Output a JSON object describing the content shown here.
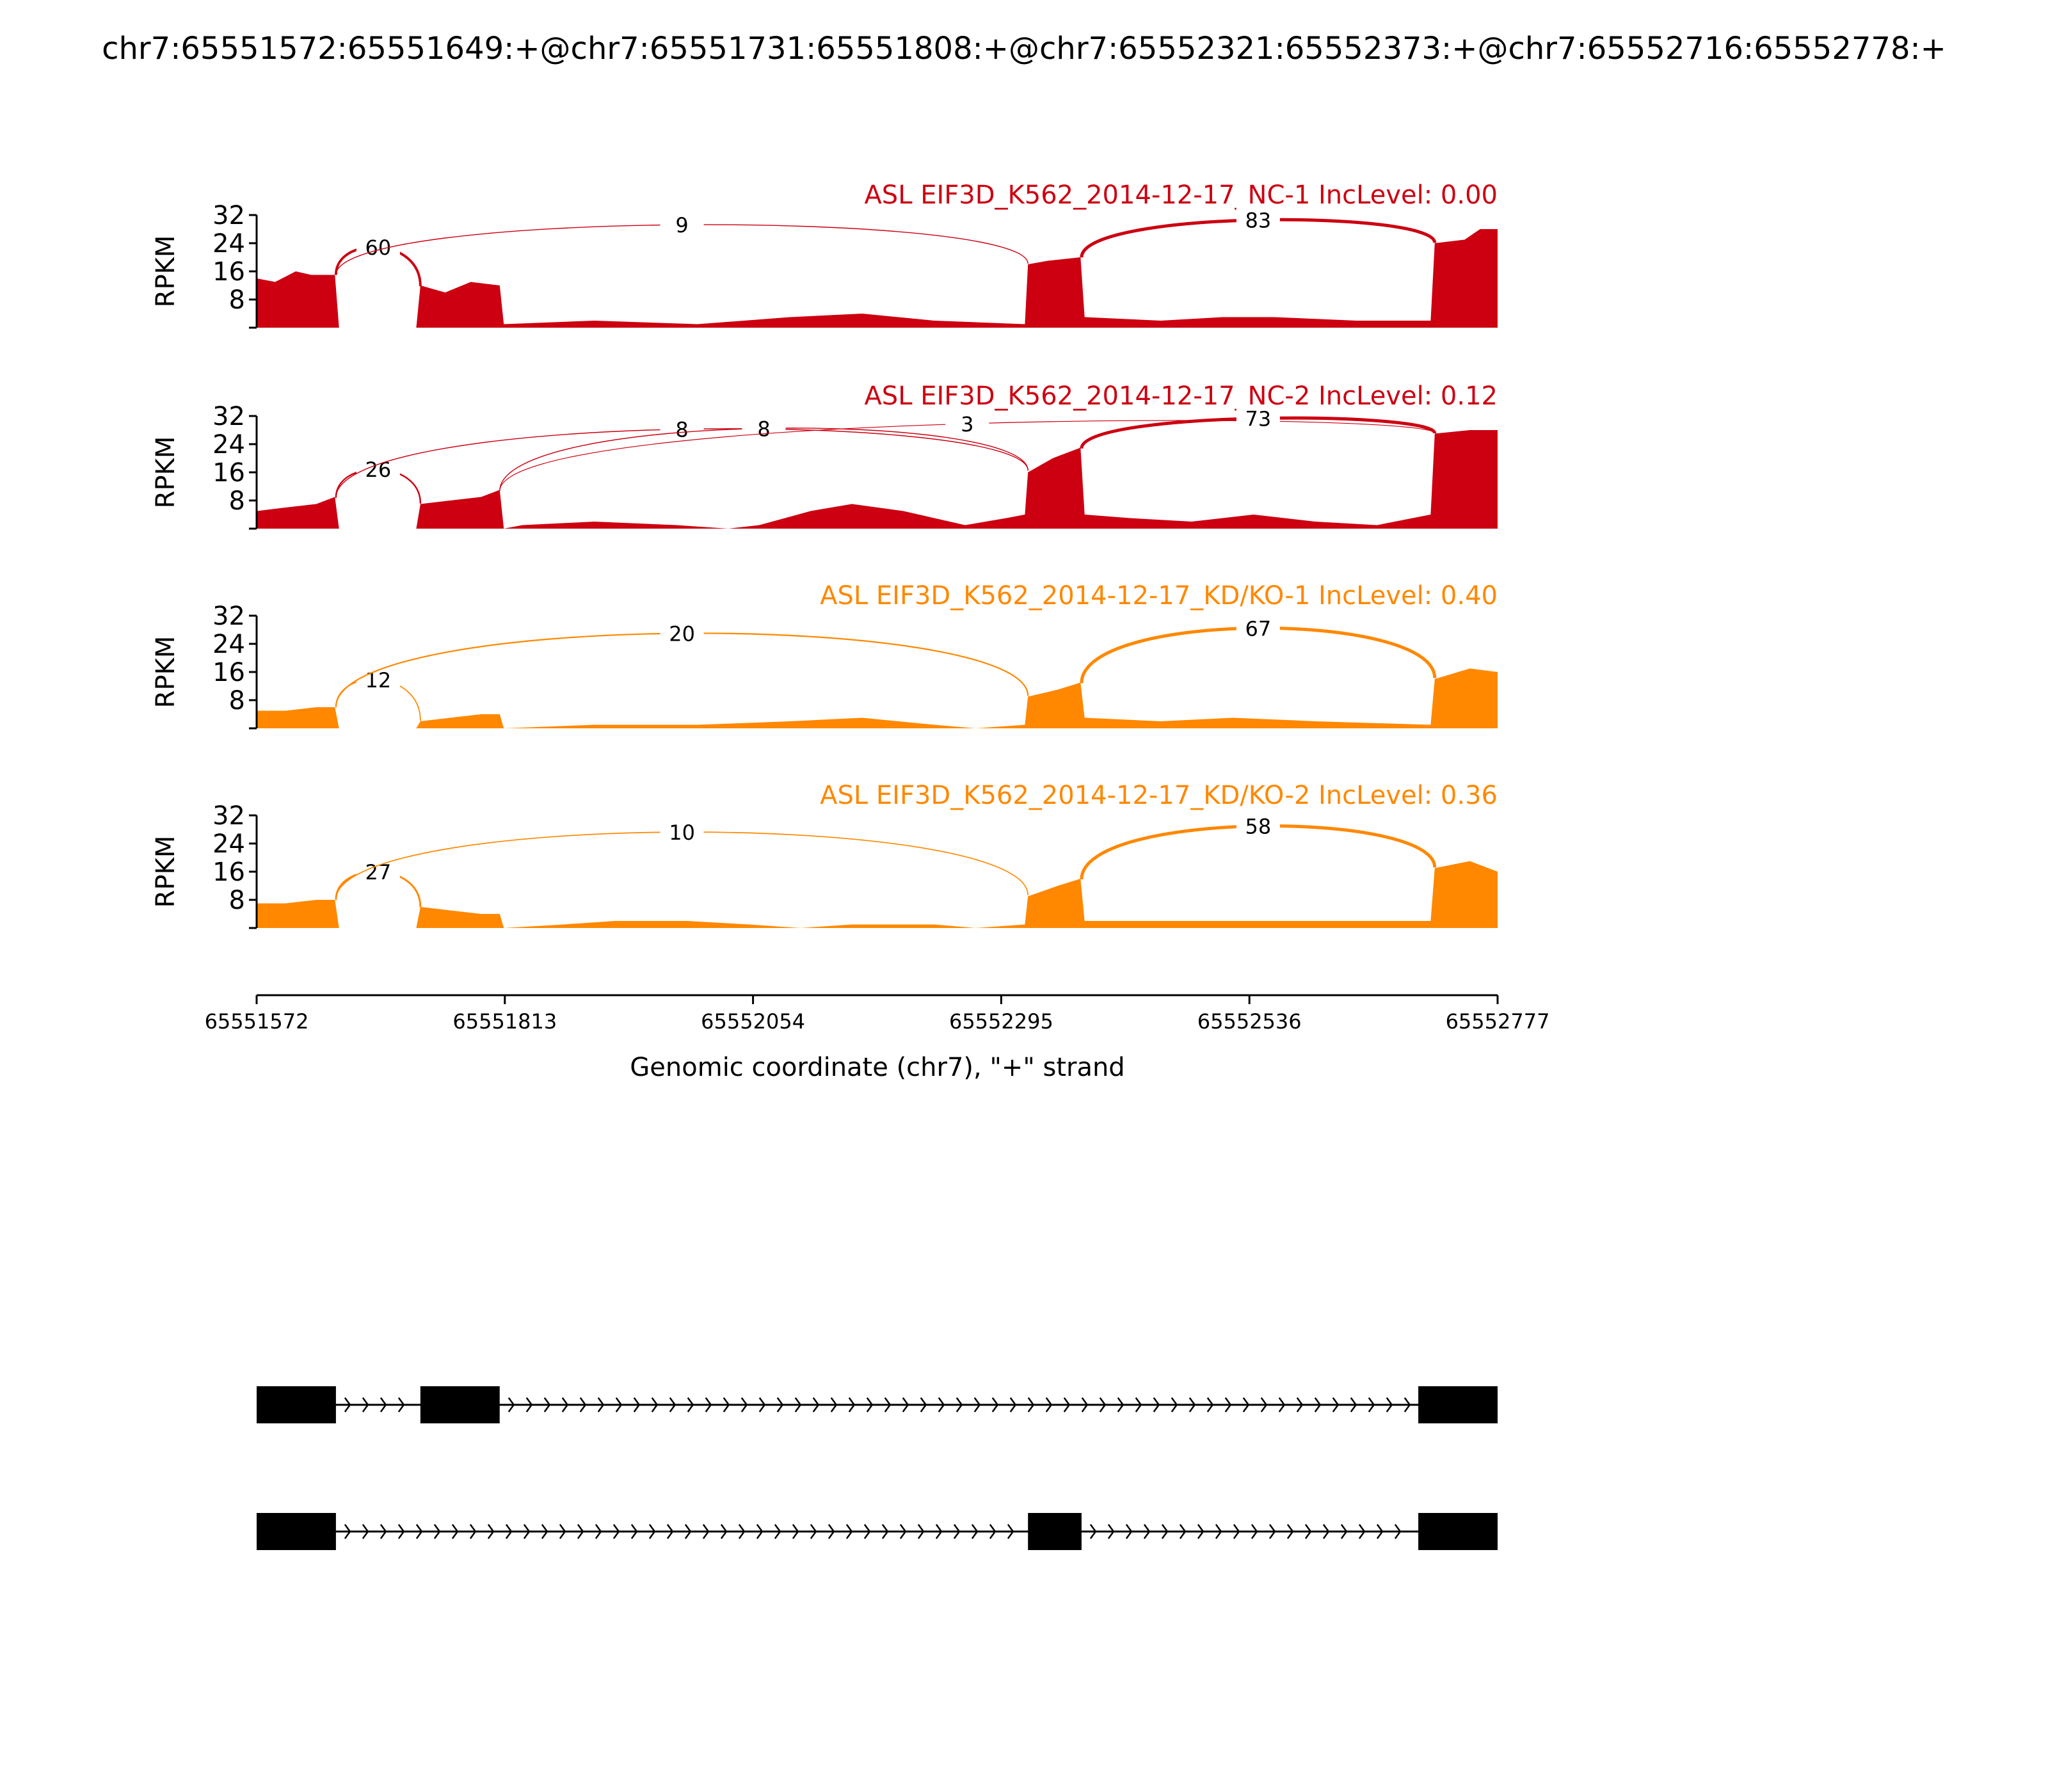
{
  "figure": {
    "title": "chr7:65551572:65551649:+@chr7:65551731:65551808:+@chr7:65552321:65552373:+@chr7:65552716:65552778:+",
    "xlabel": "Genomic coordinate (chr7), \"+\" strand",
    "ylabel": "RPKM",
    "colors": {
      "nc": "#cc0011",
      "kd": "#ff8800",
      "axis": "#000000"
    }
  },
  "chart_data": {
    "type": "area",
    "chart_subtype": "sashimi",
    "xlim": [
      65551572,
      65552777
    ],
    "x_ticks": [
      65551572,
      65551813,
      65552054,
      65552295,
      65552536,
      65552777
    ],
    "ylim": [
      0,
      32
    ],
    "y_ticks": [
      8,
      16,
      24,
      32
    ],
    "samples": [
      {
        "label": "ASL EIF3D_K562_2014-12-17_NC-1 IncLevel: 0.00",
        "group": "nc",
        "profile": [
          [
            65551572,
            14
          ],
          [
            65551590,
            13
          ],
          [
            65551610,
            16
          ],
          [
            65551625,
            15
          ],
          [
            65551648,
            15
          ],
          [
            65551652,
            0
          ],
          [
            65551727,
            0
          ],
          [
            65551731,
            12
          ],
          [
            65551755,
            10
          ],
          [
            65551780,
            13
          ],
          [
            65551808,
            12
          ],
          [
            65551812,
            1
          ],
          [
            65551900,
            2
          ],
          [
            65552000,
            1
          ],
          [
            65552090,
            3
          ],
          [
            65552160,
            4
          ],
          [
            65552230,
            2
          ],
          [
            65552318,
            1
          ],
          [
            65552321,
            18
          ],
          [
            65552340,
            19
          ],
          [
            65552372,
            20
          ],
          [
            65552376,
            3
          ],
          [
            65552450,
            2
          ],
          [
            65552510,
            3
          ],
          [
            65552560,
            3
          ],
          [
            65552640,
            2
          ],
          [
            65552712,
            2
          ],
          [
            65552716,
            24
          ],
          [
            65552745,
            25
          ],
          [
            65552760,
            28
          ],
          [
            65552777,
            28
          ]
        ],
        "junctions": [
          {
            "from": 65551649,
            "to": 65551731,
            "count": "60"
          },
          {
            "from": 65551649,
            "to": 65552321,
            "count": "9"
          },
          {
            "from": 65552373,
            "to": 65552716,
            "count": "83"
          }
        ]
      },
      {
        "label": "ASL EIF3D_K562_2014-12-17_NC-2 IncLevel: 0.12",
        "group": "nc",
        "profile": [
          [
            65551572,
            5
          ],
          [
            65551600,
            6
          ],
          [
            65551630,
            7
          ],
          [
            65551648,
            9
          ],
          [
            65551652,
            0
          ],
          [
            65551727,
            0
          ],
          [
            65551731,
            7
          ],
          [
            65551760,
            8
          ],
          [
            65551790,
            9
          ],
          [
            65551808,
            11
          ],
          [
            65551812,
            0
          ],
          [
            65551830,
            1
          ],
          [
            65551900,
            2
          ],
          [
            65551980,
            1
          ],
          [
            65552030,
            0
          ],
          [
            65552060,
            1
          ],
          [
            65552110,
            5
          ],
          [
            65552150,
            7
          ],
          [
            65552200,
            5
          ],
          [
            65552260,
            1
          ],
          [
            65552300,
            3
          ],
          [
            65552318,
            4
          ],
          [
            65552321,
            16
          ],
          [
            65552345,
            20
          ],
          [
            65552372,
            23
          ],
          [
            65552376,
            4
          ],
          [
            65552420,
            3
          ],
          [
            65552480,
            2
          ],
          [
            65552540,
            4
          ],
          [
            65552600,
            2
          ],
          [
            65552660,
            1
          ],
          [
            65552712,
            4
          ],
          [
            65552716,
            27
          ],
          [
            65552750,
            28
          ],
          [
            65552777,
            28
          ]
        ],
        "junctions": [
          {
            "from": 65551649,
            "to": 65551731,
            "count": "26"
          },
          {
            "from": 65551649,
            "to": 65552321,
            "count": "8"
          },
          {
            "from": 65551808,
            "to": 65552321,
            "count": "8"
          },
          {
            "from": 65551808,
            "to": 65552716,
            "count": "3"
          },
          {
            "from": 65552373,
            "to": 65552716,
            "count": "73"
          }
        ]
      },
      {
        "label": "ASL EIF3D_K562_2014-12-17_KD/KO-1 IncLevel: 0.40",
        "group": "kd",
        "profile": [
          [
            65551572,
            5
          ],
          [
            65551600,
            5
          ],
          [
            65551630,
            6
          ],
          [
            65551648,
            6
          ],
          [
            65551652,
            0
          ],
          [
            65551727,
            0
          ],
          [
            65551731,
            2
          ],
          [
            65551760,
            3
          ],
          [
            65551790,
            4
          ],
          [
            65551808,
            4
          ],
          [
            65551812,
            0
          ],
          [
            65551900,
            1
          ],
          [
            65552000,
            1
          ],
          [
            65552090,
            2
          ],
          [
            65552160,
            3
          ],
          [
            65552230,
            1
          ],
          [
            65552270,
            0
          ],
          [
            65552318,
            1
          ],
          [
            65552321,
            9
          ],
          [
            65552350,
            11
          ],
          [
            65552372,
            13
          ],
          [
            65552376,
            3
          ],
          [
            65552450,
            2
          ],
          [
            65552520,
            3
          ],
          [
            65552600,
            2
          ],
          [
            65552712,
            1
          ],
          [
            65552716,
            14
          ],
          [
            65552750,
            17
          ],
          [
            65552777,
            16
          ]
        ],
        "junctions": [
          {
            "from": 65551649,
            "to": 65551731,
            "count": "12"
          },
          {
            "from": 65551649,
            "to": 65552321,
            "count": "20"
          },
          {
            "from": 65552373,
            "to": 65552716,
            "count": "67"
          }
        ]
      },
      {
        "label": "ASL EIF3D_K562_2014-12-17_KD/KO-2 IncLevel: 0.36",
        "group": "kd",
        "profile": [
          [
            65551572,
            7
          ],
          [
            65551600,
            7
          ],
          [
            65551630,
            8
          ],
          [
            65551648,
            8
          ],
          [
            65551652,
            0
          ],
          [
            65551727,
            0
          ],
          [
            65551731,
            6
          ],
          [
            65551760,
            5
          ],
          [
            65551790,
            4
          ],
          [
            65551808,
            4
          ],
          [
            65551812,
            0
          ],
          [
            65551870,
            1
          ],
          [
            65551920,
            2
          ],
          [
            65551990,
            2
          ],
          [
            65552050,
            1
          ],
          [
            65552100,
            0
          ],
          [
            65552150,
            1
          ],
          [
            65552230,
            1
          ],
          [
            65552270,
            0
          ],
          [
            65552318,
            1
          ],
          [
            65552321,
            9
          ],
          [
            65552350,
            12
          ],
          [
            65552372,
            14
          ],
          [
            65552376,
            2
          ],
          [
            65552450,
            2
          ],
          [
            65552550,
            2
          ],
          [
            65552650,
            2
          ],
          [
            65552712,
            2
          ],
          [
            65552716,
            17
          ],
          [
            65552750,
            19
          ],
          [
            65552777,
            16
          ]
        ],
        "junctions": [
          {
            "from": 65551649,
            "to": 65551731,
            "count": "27"
          },
          {
            "from": 65551649,
            "to": 65552321,
            "count": "10"
          },
          {
            "from": 65552373,
            "to": 65552716,
            "count": "58"
          }
        ]
      }
    ],
    "isoforms": [
      {
        "exons": [
          [
            65551572,
            65551649
          ],
          [
            65551731,
            65551808
          ],
          [
            65552700,
            65552777
          ]
        ]
      },
      {
        "exons": [
          [
            65551572,
            65551649
          ],
          [
            65552321,
            65552373
          ],
          [
            65552700,
            65552777
          ]
        ]
      }
    ]
  }
}
